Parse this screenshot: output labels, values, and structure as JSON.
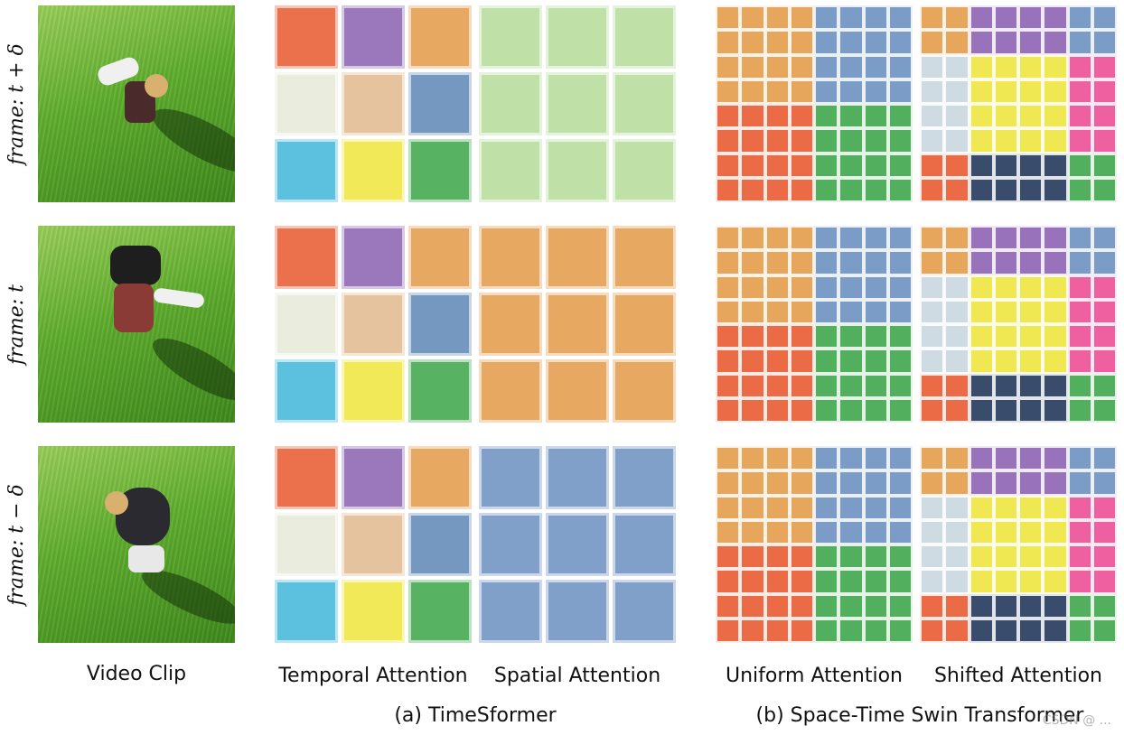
{
  "frame_labels": [
    "frame: t + δ",
    "frame: t",
    "frame: t − δ"
  ],
  "column_labels": {
    "video_clip": "Video Clip",
    "temporal": "Temporal Attention",
    "spatial": "Spatial Attention",
    "uniform": "Uniform Attention",
    "shifted": "Shifted Attention"
  },
  "captions": {
    "timesformer": "(a) TimeSformer",
    "swin": "(b) Space-Time Swin Transformer"
  },
  "watermark": "CSDN @ ...",
  "colors": {
    "red": "#e8572d",
    "purple": "#8a5fb0",
    "orange": "#e39a46",
    "cream": "#e6ead8",
    "peach": "#e0b98e",
    "steel": "#5d86b5",
    "cyan": "#3fb6d9",
    "yellow": "#eee53a",
    "green": "#39a447",
    "lightgreen": "#a9d68a",
    "blue": "#6a8ec0",
    "pink": "#ec4a93",
    "navy": "#1f3357",
    "pale": "#c7d6df"
  },
  "temporal_grid": [
    "red",
    "purple",
    "orange",
    "cream",
    "peach",
    "steel",
    "cyan",
    "yellow",
    "green"
  ],
  "spatial_grid_colors": [
    "lightgreen",
    "orange",
    "blue"
  ],
  "uniform_grid_8x8": [
    [
      "orange",
      "orange",
      "orange",
      "orange",
      "blue",
      "blue",
      "blue",
      "blue"
    ],
    [
      "orange",
      "orange",
      "orange",
      "orange",
      "blue",
      "blue",
      "blue",
      "blue"
    ],
    [
      "orange",
      "orange",
      "orange",
      "orange",
      "blue",
      "blue",
      "blue",
      "blue"
    ],
    [
      "orange",
      "orange",
      "orange",
      "orange",
      "blue",
      "blue",
      "blue",
      "blue"
    ],
    [
      "red",
      "red",
      "red",
      "red",
      "green",
      "green",
      "green",
      "green"
    ],
    [
      "red",
      "red",
      "red",
      "red",
      "green",
      "green",
      "green",
      "green"
    ],
    [
      "red",
      "red",
      "red",
      "red",
      "green",
      "green",
      "green",
      "green"
    ],
    [
      "red",
      "red",
      "red",
      "red",
      "green",
      "green",
      "green",
      "green"
    ]
  ],
  "shifted_grid_8x8": [
    [
      "orange",
      "orange",
      "purple",
      "purple",
      "purple",
      "purple",
      "blue",
      "blue"
    ],
    [
      "orange",
      "orange",
      "purple",
      "purple",
      "purple",
      "purple",
      "blue",
      "blue"
    ],
    [
      "pale",
      "pale",
      "yellow",
      "yellow",
      "yellow",
      "yellow",
      "pink",
      "pink"
    ],
    [
      "pale",
      "pale",
      "yellow",
      "yellow",
      "yellow",
      "yellow",
      "pink",
      "pink"
    ],
    [
      "pale",
      "pale",
      "yellow",
      "yellow",
      "yellow",
      "yellow",
      "pink",
      "pink"
    ],
    [
      "pale",
      "pale",
      "yellow",
      "yellow",
      "yellow",
      "yellow",
      "pink",
      "pink"
    ],
    [
      "red",
      "red",
      "navy",
      "navy",
      "navy",
      "navy",
      "green",
      "green"
    ],
    [
      "red",
      "red",
      "navy",
      "navy",
      "navy",
      "navy",
      "green",
      "green"
    ]
  ]
}
